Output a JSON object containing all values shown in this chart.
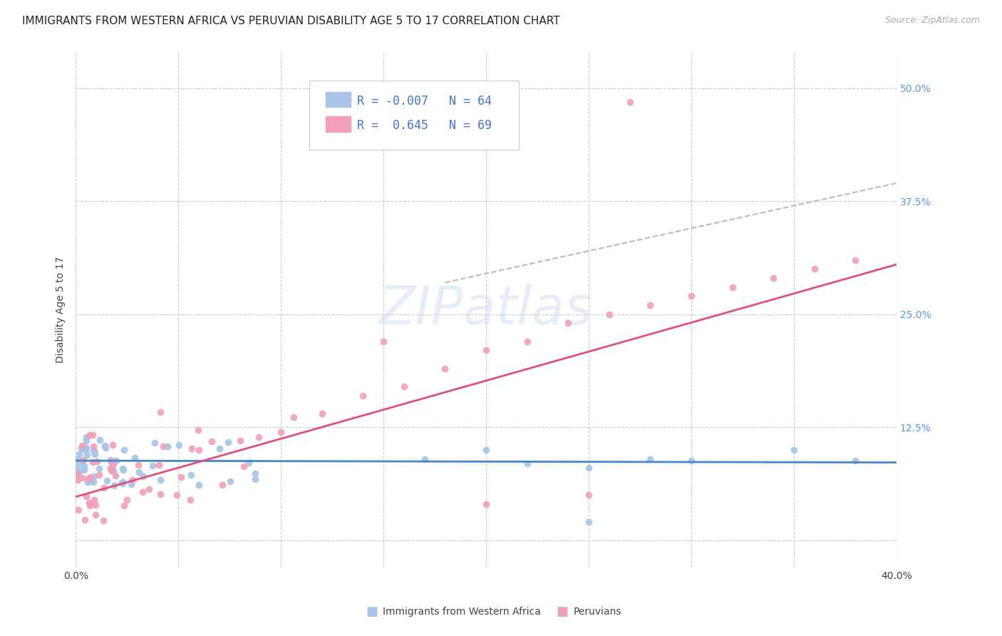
{
  "title": "IMMIGRANTS FROM WESTERN AFRICA VS PERUVIAN DISABILITY AGE 5 TO 17 CORRELATION CHART",
  "source": "Source: ZipAtlas.com",
  "ylabel": "Disability Age 5 to 17",
  "xlim": [
    0.0,
    0.4
  ],
  "ylim": [
    -0.03,
    0.54
  ],
  "ytick_positions": [
    0.0,
    0.125,
    0.25,
    0.375,
    0.5
  ],
  "yticklabels_right": [
    "",
    "12.5%",
    "25.0%",
    "37.5%",
    "50.0%"
  ],
  "xtick_vals": [
    0.0,
    0.05,
    0.1,
    0.15,
    0.2,
    0.25,
    0.3,
    0.35,
    0.4
  ],
  "grid_color": "#cccccc",
  "background_color": "#ffffff",
  "blue_color": "#a8c4e8",
  "pink_color": "#f0a0b8",
  "blue_line_color": "#4488cc",
  "pink_line_color": "#e0507a",
  "dashed_line_color": "#bbbbbb",
  "title_fontsize": 11,
  "axis_label_fontsize": 10,
  "tick_fontsize": 10,
  "legend_fontsize": 11,
  "blue_line_x": [
    0.0,
    0.4
  ],
  "blue_line_y": [
    0.088,
    0.086
  ],
  "pink_line_x": [
    0.0,
    0.4
  ],
  "pink_line_y": [
    0.048,
    0.305
  ],
  "dash_line_x": [
    0.18,
    0.4
  ],
  "dash_line_y": [
    0.285,
    0.395
  ]
}
